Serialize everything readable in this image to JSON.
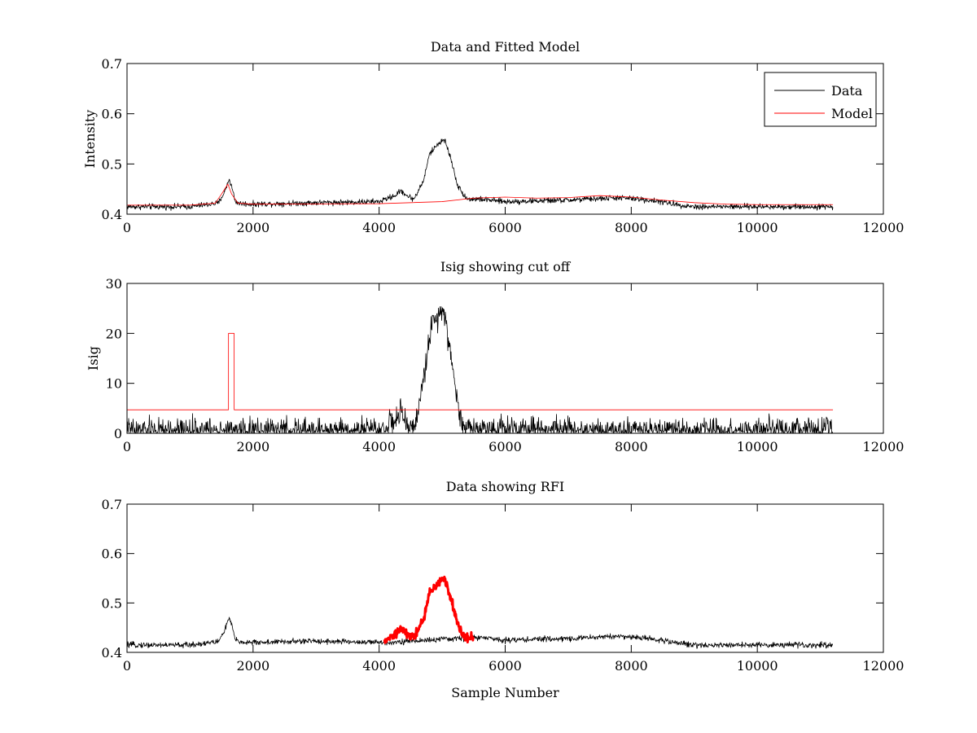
{
  "chart_data": [
    {
      "type": "line",
      "title": "Data and Fitted Model",
      "xlabel": "",
      "ylabel": "Intensity",
      "xlim": [
        0,
        12000
      ],
      "ylim": [
        0.4,
        0.7
      ],
      "xticks": [
        0,
        2000,
        4000,
        6000,
        8000,
        10000,
        12000
      ],
      "yticks": [
        0.4,
        0.5,
        0.6,
        0.7
      ],
      "xtick_labels": [
        "0",
        "2000",
        "4000",
        "6000",
        "8000",
        "10000",
        "12000"
      ],
      "ytick_labels": [
        "0.4",
        "0.5",
        "0.6",
        "0.7"
      ],
      "grid": false,
      "legend": {
        "position": "top-right",
        "entries": [
          {
            "label": "Data",
            "color": "#000000"
          },
          {
            "label": "Model",
            "color": "#ff0000"
          }
        ]
      },
      "series": [
        {
          "name": "Data",
          "color": "#000000",
          "noise": 0.004,
          "x": [
            0,
            1000,
            1450,
            1550,
            1620,
            1660,
            1720,
            1800,
            2000,
            3000,
            4000,
            4250,
            4350,
            4450,
            4550,
            4700,
            4800,
            4900,
            5000,
            5050,
            5150,
            5250,
            5400,
            5600,
            6000,
            7000,
            7800,
            8300,
            8800,
            9000,
            10000,
            11200
          ],
          "y": [
            0.415,
            0.415,
            0.422,
            0.445,
            0.47,
            0.455,
            0.425,
            0.421,
            0.42,
            0.423,
            0.425,
            0.437,
            0.447,
            0.436,
            0.43,
            0.465,
            0.52,
            0.535,
            0.548,
            0.545,
            0.505,
            0.455,
            0.43,
            0.43,
            0.425,
            0.428,
            0.433,
            0.428,
            0.418,
            0.415,
            0.415,
            0.415
          ]
        },
        {
          "name": "Model",
          "color": "#ff0000",
          "noise": 0,
          "x": [
            0,
            1000,
            1400,
            1500,
            1600,
            1660,
            1760,
            2000,
            4000,
            5000,
            5500,
            6000,
            6500,
            7000,
            7500,
            8000,
            8500,
            9000,
            9500,
            10000,
            11200
          ],
          "y": [
            0.418,
            0.418,
            0.422,
            0.44,
            0.46,
            0.44,
            0.422,
            0.42,
            0.421,
            0.425,
            0.432,
            0.434,
            0.432,
            0.433,
            0.437,
            0.434,
            0.428,
            0.423,
            0.42,
            0.419,
            0.419
          ]
        }
      ]
    },
    {
      "type": "line",
      "title": "Isig showing cut off",
      "xlabel": "",
      "ylabel": "Isig",
      "xlim": [
        0,
        12000
      ],
      "ylim": [
        0,
        30
      ],
      "xticks": [
        0,
        2000,
        4000,
        6000,
        8000,
        10000,
        12000
      ],
      "yticks": [
        0,
        10,
        20,
        30
      ],
      "xtick_labels": [
        "0",
        "2000",
        "4000",
        "6000",
        "8000",
        "10000",
        "12000"
      ],
      "ytick_labels": [
        "0",
        "10",
        "20",
        "30"
      ],
      "grid": false,
      "series": [
        {
          "name": "",
          "color": "#000000",
          "noise": 1.8,
          "x": [
            0,
            1000,
            2000,
            3000,
            4000,
            4250,
            4350,
            4450,
            4550,
            4700,
            4800,
            4900,
            5000,
            5050,
            5150,
            5300,
            5500,
            6000,
            6500,
            7000,
            8000,
            9000,
            10000,
            11200
          ],
          "y": [
            0.5,
            0.5,
            0.5,
            0.5,
            0.5,
            2.5,
            4.0,
            1.5,
            0.5,
            10,
            20,
            23,
            25,
            24,
            14,
            2,
            0.8,
            1.2,
            1.0,
            0.7,
            0.6,
            0.5,
            0.5,
            0.5
          ]
        },
        {
          "name": "",
          "color": "#ff0000",
          "noise": 0,
          "x": [
            0,
            1610,
            1610,
            1700,
            1700,
            11200
          ],
          "y": [
            4.7,
            4.7,
            20,
            20,
            4.7,
            4.7
          ]
        }
      ]
    },
    {
      "type": "line",
      "title": "Data showing RFI",
      "xlabel": "Sample Number",
      "ylabel": "",
      "xlim": [
        0,
        12000
      ],
      "ylim": [
        0.4,
        0.7
      ],
      "xticks": [
        0,
        2000,
        4000,
        6000,
        8000,
        10000,
        12000
      ],
      "yticks": [
        0.4,
        0.5,
        0.6,
        0.7
      ],
      "xtick_labels": [
        "0",
        "2000",
        "4000",
        "6000",
        "8000",
        "10000",
        "12000"
      ],
      "ytick_labels": [
        "0.4",
        "0.5",
        "0.6",
        "0.7"
      ],
      "grid": false,
      "series": [
        {
          "name": "",
          "color": "#000000",
          "noise": 0.004,
          "x": [
            0,
            1000,
            1450,
            1550,
            1620,
            1660,
            1720,
            1800,
            2000,
            3000,
            4000,
            4100,
            5500,
            5600,
            6000,
            7000,
            7800,
            8300,
            8800,
            9000,
            10000,
            11200
          ],
          "y": [
            0.415,
            0.415,
            0.422,
            0.445,
            0.47,
            0.455,
            0.425,
            0.421,
            0.42,
            0.423,
            0.42,
            0.42,
            0.43,
            0.43,
            0.425,
            0.428,
            0.433,
            0.428,
            0.418,
            0.415,
            0.415,
            0.415
          ]
        },
        {
          "name": "",
          "color": "#ff0000",
          "noise": 0.006,
          "width": 3,
          "x": [
            4080,
            4250,
            4350,
            4450,
            4550,
            4700,
            4800,
            4900,
            5000,
            5050,
            5150,
            5250,
            5350,
            5500
          ],
          "y": [
            0.42,
            0.437,
            0.447,
            0.436,
            0.43,
            0.465,
            0.52,
            0.535,
            0.548,
            0.545,
            0.505,
            0.455,
            0.43,
            0.432
          ]
        }
      ]
    }
  ]
}
